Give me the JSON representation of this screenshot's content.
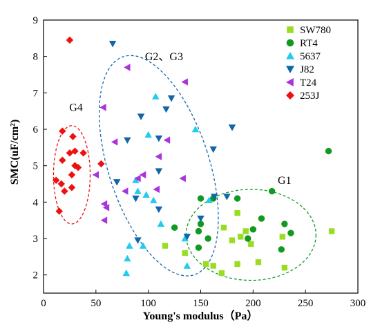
{
  "chart_data": {
    "type": "scatter",
    "xlabel": "Young's modulus（Pa）",
    "ylabel": "SMC(uF/cm²)",
    "xlim": [
      0,
      300
    ],
    "ylim": [
      1.5,
      9
    ],
    "xticks": [
      0,
      50,
      100,
      150,
      200,
      250,
      300
    ],
    "yticks": [
      2,
      3,
      4,
      5,
      6,
      7,
      8,
      9
    ],
    "grid": false,
    "legend_position": "top-right",
    "series": [
      {
        "name": "SW780",
        "color": "#99dd22",
        "marker": "square",
        "points": [
          [
            116,
            2.8
          ],
          [
            135,
            2.6
          ],
          [
            155,
            2.3
          ],
          [
            162,
            2.25
          ],
          [
            170,
            2.05
          ],
          [
            172,
            3.3
          ],
          [
            180,
            2.95
          ],
          [
            185,
            2.3
          ],
          [
            185,
            3.7
          ],
          [
            188,
            3.05
          ],
          [
            193,
            3.2
          ],
          [
            198,
            2.85
          ],
          [
            205,
            2.35
          ],
          [
            228,
            3.05
          ],
          [
            230,
            2.2
          ],
          [
            275,
            3.2
          ]
        ]
      },
      {
        "name": "RT4",
        "color": "#119922",
        "marker": "circle",
        "points": [
          [
            125,
            3.3
          ],
          [
            148,
            3.2
          ],
          [
            150,
            4.1
          ],
          [
            150,
            3.4
          ],
          [
            148,
            2.75
          ],
          [
            157,
            3.0
          ],
          [
            162,
            4.1
          ],
          [
            185,
            4.1
          ],
          [
            195,
            3.0
          ],
          [
            200,
            3.25
          ],
          [
            208,
            3.55
          ],
          [
            218,
            4.3
          ],
          [
            227,
            2.7
          ],
          [
            230,
            3.4
          ],
          [
            236,
            3.15
          ],
          [
            272,
            5.4
          ]
        ]
      },
      {
        "name": "5637",
        "color": "#22ccee",
        "marker": "triangle-up",
        "points": [
          [
            79,
            2.05
          ],
          [
            80,
            2.45
          ],
          [
            82,
            2.8
          ],
          [
            88,
            4.6
          ],
          [
            90,
            4.3
          ],
          [
            95,
            2.8
          ],
          [
            98,
            4.2
          ],
          [
            100,
            5.85
          ],
          [
            105,
            4.05
          ],
          [
            107,
            6.9
          ],
          [
            112,
            3.4
          ],
          [
            135,
            3.0
          ],
          [
            137,
            2.25
          ],
          [
            145,
            6.0
          ],
          [
            158,
            4.05
          ]
        ]
      },
      {
        "name": "J82",
        "color": "#1166aa",
        "marker": "triangle-down",
        "points": [
          [
            66,
            8.35
          ],
          [
            70,
            4.55
          ],
          [
            80,
            5.7
          ],
          [
            88,
            4.1
          ],
          [
            90,
            2.95
          ],
          [
            93,
            6.35
          ],
          [
            110,
            3.8
          ],
          [
            110,
            4.85
          ],
          [
            110,
            5.75
          ],
          [
            117,
            6.55
          ],
          [
            122,
            6.85
          ],
          [
            137,
            3.05
          ],
          [
            150,
            3.55
          ],
          [
            162,
            5.45
          ],
          [
            163,
            4.15
          ],
          [
            175,
            4.15
          ],
          [
            180,
            6.05
          ]
        ]
      },
      {
        "name": "T24",
        "color": "#aa33dd",
        "marker": "triangle-left",
        "points": [
          [
            50,
            4.75
          ],
          [
            57,
            6.6
          ],
          [
            58,
            3.95
          ],
          [
            58,
            3.5
          ],
          [
            60,
            3.85
          ],
          [
            68,
            5.65
          ],
          [
            78,
            4.3
          ],
          [
            80,
            7.7
          ],
          [
            90,
            4.65
          ],
          [
            95,
            4.75
          ],
          [
            108,
            4.35
          ],
          [
            110,
            5.25
          ],
          [
            118,
            5.7
          ],
          [
            133,
            4.65
          ],
          [
            135,
            7.3
          ]
        ]
      },
      {
        "name": "253J",
        "color": "#ee1111",
        "marker": "diamond",
        "points": [
          [
            25,
            8.45
          ],
          [
            12,
            4.6
          ],
          [
            15,
            3.75
          ],
          [
            17,
            4.5
          ],
          [
            18,
            5.95
          ],
          [
            18,
            5.15
          ],
          [
            20,
            4.3
          ],
          [
            25,
            5.35
          ],
          [
            27,
            4.4
          ],
          [
            27,
            4.75
          ],
          [
            28,
            5.8
          ],
          [
            30,
            5.4
          ],
          [
            30,
            5.0
          ],
          [
            33,
            4.95
          ],
          [
            38,
            5.35
          ],
          [
            55,
            5.05
          ]
        ]
      }
    ],
    "annotations": [
      {
        "label": "G4",
        "color": "#ee1111",
        "ellipse": {
          "cx": 27,
          "cy": 4.75,
          "rx": 17.5,
          "ry": 1.35,
          "angle": 0
        },
        "label_pos": [
          31,
          6.5
        ]
      },
      {
        "label": "G2、G3",
        "color": "#1166aa",
        "ellipse": {
          "cx": 110,
          "cy": 5.0,
          "rx": 48,
          "ry": 3.15,
          "angle": 18
        },
        "label_pos": [
          115,
          7.9
        ]
      },
      {
        "label": "G1",
        "color": "#119922",
        "ellipse": {
          "cx": 198,
          "cy": 3.1,
          "rx": 62,
          "ry": 1.25,
          "angle": 0
        },
        "label_pos": [
          230,
          4.5
        ]
      }
    ]
  }
}
